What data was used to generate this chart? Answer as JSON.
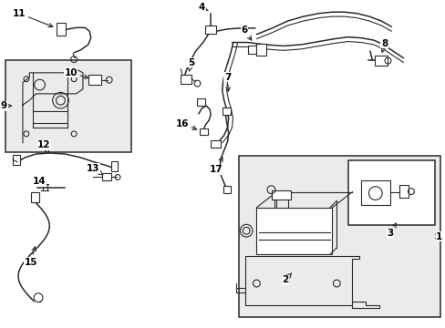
{
  "bg_color": "#ffffff",
  "box_fill": "#ebebeb",
  "line_color": "#2a2a2a",
  "label_color": "#000000",
  "fig_width": 4.89,
  "fig_height": 3.6,
  "dpi": 100
}
